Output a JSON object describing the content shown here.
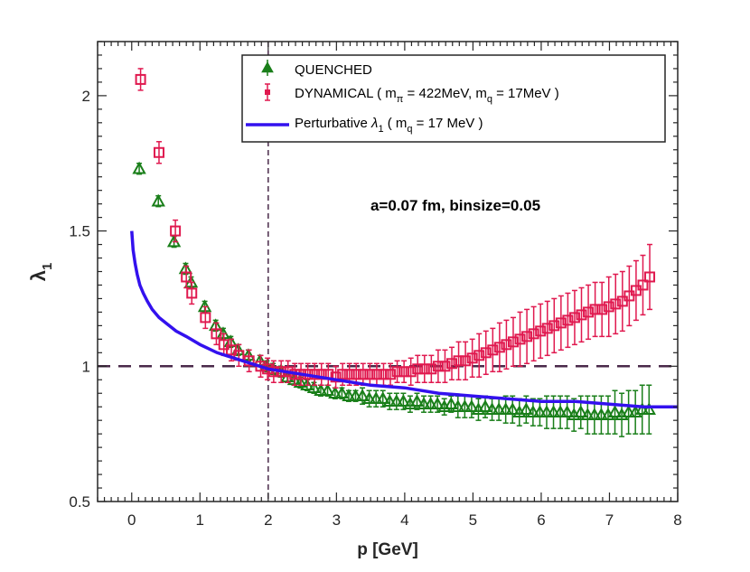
{
  "chart_data": {
    "type": "scatter",
    "xlabel": "p [GeV]",
    "ylabel": "λ",
    "ylabel_subscript": "1",
    "xlim": [
      -0.5,
      8
    ],
    "ylim": [
      0.5,
      2.2
    ],
    "xticks": [
      0,
      1,
      2,
      3,
      4,
      5,
      6,
      7,
      8
    ],
    "xtick_labels": [
      "0",
      "1",
      "2",
      "3",
      "4",
      "5",
      "6",
      "7",
      "8"
    ],
    "yticks": [
      0.5,
      1,
      1.5,
      2
    ],
    "ytick_labels": [
      "0.5",
      "1",
      "1.5",
      "2"
    ],
    "annotation": "a=0.07 fm, binsize=0.05",
    "reference_lines": {
      "horizontal_y": 1,
      "vertical_x": 2
    },
    "legend": {
      "placement": "top-right",
      "entries": [
        {
          "label": "QUENCHED"
        },
        {
          "label": "DYNAMICAL ( m",
          "sub1": "π",
          "mid": " = 422MeV, m",
          "sub2": "q",
          "tail": " = 17MeV )"
        },
        {
          "label": "Perturbative ",
          "sym": "λ",
          "sub1": "1",
          "mid": " ( m",
          "sub2": "q",
          "tail": " = 17 MeV )"
        }
      ]
    },
    "colors": {
      "quenched": "#1a7f1a",
      "dynamical": "#e0194f",
      "perturbative": "#3311ee",
      "ref_lines": "#4a2a4a"
    },
    "series": [
      {
        "name": "QUENCHED",
        "x": [
          0.11,
          0.39,
          0.62,
          0.79,
          0.87,
          1.07,
          1.23,
          1.34,
          1.45,
          1.56,
          1.71,
          1.88,
          1.98,
          2.07,
          2.18,
          2.28,
          2.38,
          2.47,
          2.57,
          2.67,
          2.77,
          2.87,
          2.98,
          3.08,
          3.18,
          3.28,
          3.38,
          3.48,
          3.58,
          3.68,
          3.78,
          3.88,
          3.98,
          4.08,
          4.18,
          4.28,
          4.38,
          4.48,
          4.58,
          4.68,
          4.78,
          4.88,
          4.98,
          5.08,
          5.18,
          5.28,
          5.38,
          5.48,
          5.58,
          5.68,
          5.78,
          5.88,
          5.98,
          6.08,
          6.18,
          6.28,
          6.38,
          6.48,
          6.58,
          6.68,
          6.78,
          6.88,
          6.98,
          7.08,
          7.18,
          7.28,
          7.38,
          7.48,
          7.58
        ],
        "y": [
          1.73,
          1.61,
          1.46,
          1.36,
          1.31,
          1.22,
          1.15,
          1.12,
          1.09,
          1.06,
          1.04,
          1.02,
          1.0,
          0.99,
          0.98,
          0.96,
          0.95,
          0.94,
          0.93,
          0.92,
          0.91,
          0.91,
          0.9,
          0.9,
          0.89,
          0.89,
          0.89,
          0.88,
          0.88,
          0.88,
          0.87,
          0.87,
          0.87,
          0.86,
          0.87,
          0.86,
          0.86,
          0.86,
          0.85,
          0.86,
          0.85,
          0.85,
          0.85,
          0.84,
          0.85,
          0.84,
          0.84,
          0.84,
          0.84,
          0.83,
          0.84,
          0.83,
          0.83,
          0.83,
          0.83,
          0.83,
          0.83,
          0.82,
          0.83,
          0.82,
          0.82,
          0.82,
          0.82,
          0.83,
          0.82,
          0.83,
          0.83,
          0.84,
          0.84
        ],
        "err": [
          0.02,
          0.02,
          0.02,
          0.02,
          0.02,
          0.02,
          0.02,
          0.02,
          0.02,
          0.02,
          0.02,
          0.02,
          0.02,
          0.02,
          0.02,
          0.02,
          0.02,
          0.02,
          0.02,
          0.02,
          0.02,
          0.02,
          0.02,
          0.02,
          0.02,
          0.02,
          0.03,
          0.03,
          0.03,
          0.03,
          0.03,
          0.03,
          0.03,
          0.03,
          0.03,
          0.03,
          0.03,
          0.03,
          0.03,
          0.03,
          0.04,
          0.04,
          0.04,
          0.04,
          0.04,
          0.04,
          0.04,
          0.05,
          0.05,
          0.05,
          0.05,
          0.05,
          0.05,
          0.06,
          0.06,
          0.06,
          0.06,
          0.06,
          0.06,
          0.07,
          0.07,
          0.07,
          0.07,
          0.08,
          0.08,
          0.08,
          0.08,
          0.09,
          0.09
        ]
      },
      {
        "name": "DYNAMICAL",
        "x": [
          0.13,
          0.4,
          0.64,
          0.8,
          0.88,
          1.08,
          1.24,
          1.35,
          1.46,
          1.57,
          1.72,
          1.89,
          1.99,
          2.08,
          2.19,
          2.29,
          2.39,
          2.48,
          2.58,
          2.68,
          2.78,
          2.88,
          2.99,
          3.09,
          3.19,
          3.29,
          3.39,
          3.49,
          3.59,
          3.69,
          3.79,
          3.89,
          3.99,
          4.09,
          4.19,
          4.29,
          4.39,
          4.49,
          4.59,
          4.69,
          4.79,
          4.89,
          4.99,
          5.09,
          5.19,
          5.29,
          5.39,
          5.49,
          5.59,
          5.69,
          5.79,
          5.89,
          5.99,
          6.09,
          6.19,
          6.29,
          6.39,
          6.49,
          6.59,
          6.69,
          6.79,
          6.89,
          6.99,
          7.09,
          7.19,
          7.29,
          7.39,
          7.49,
          7.59
        ],
        "y": [
          2.06,
          1.79,
          1.5,
          1.33,
          1.27,
          1.18,
          1.12,
          1.08,
          1.06,
          1.04,
          1.02,
          1.0,
          0.99,
          0.98,
          0.98,
          0.98,
          0.97,
          0.97,
          0.97,
          0.97,
          0.97,
          0.97,
          0.96,
          0.97,
          0.97,
          0.97,
          0.97,
          0.97,
          0.97,
          0.97,
          0.97,
          0.98,
          0.98,
          0.98,
          0.99,
          0.99,
          0.99,
          1.0,
          1.0,
          1.01,
          1.02,
          1.02,
          1.03,
          1.04,
          1.05,
          1.06,
          1.07,
          1.08,
          1.09,
          1.1,
          1.11,
          1.12,
          1.13,
          1.14,
          1.15,
          1.16,
          1.17,
          1.18,
          1.19,
          1.2,
          1.21,
          1.21,
          1.22,
          1.23,
          1.24,
          1.26,
          1.28,
          1.3,
          1.33
        ],
        "err": [
          0.04,
          0.04,
          0.04,
          0.04,
          0.04,
          0.04,
          0.04,
          0.04,
          0.04,
          0.04,
          0.04,
          0.04,
          0.04,
          0.04,
          0.04,
          0.04,
          0.04,
          0.04,
          0.04,
          0.04,
          0.04,
          0.04,
          0.04,
          0.04,
          0.04,
          0.04,
          0.04,
          0.04,
          0.04,
          0.04,
          0.04,
          0.04,
          0.04,
          0.05,
          0.05,
          0.05,
          0.05,
          0.06,
          0.06,
          0.06,
          0.07,
          0.07,
          0.07,
          0.08,
          0.08,
          0.08,
          0.09,
          0.09,
          0.09,
          0.1,
          0.1,
          0.1,
          0.1,
          0.1,
          0.1,
          0.1,
          0.1,
          0.1,
          0.1,
          0.1,
          0.1,
          0.1,
          0.11,
          0.11,
          0.11,
          0.11,
          0.11,
          0.11,
          0.12
        ]
      },
      {
        "name": "Perturbative",
        "x": [
          0.0,
          0.02,
          0.05,
          0.08,
          0.12,
          0.17,
          0.23,
          0.3,
          0.4,
          0.5,
          0.65,
          0.8,
          1.0,
          1.25,
          1.5,
          1.75,
          2.0,
          2.5,
          3.0,
          3.5,
          4.0,
          4.5,
          5.0,
          5.5,
          6.0,
          6.5,
          7.0,
          7.5,
          8.0
        ],
        "y": [
          1.5,
          1.43,
          1.38,
          1.34,
          1.3,
          1.27,
          1.24,
          1.21,
          1.18,
          1.16,
          1.13,
          1.11,
          1.08,
          1.05,
          1.03,
          1.01,
          0.99,
          0.97,
          0.95,
          0.93,
          0.92,
          0.9,
          0.89,
          0.88,
          0.87,
          0.87,
          0.86,
          0.85,
          0.85
        ]
      }
    ]
  }
}
